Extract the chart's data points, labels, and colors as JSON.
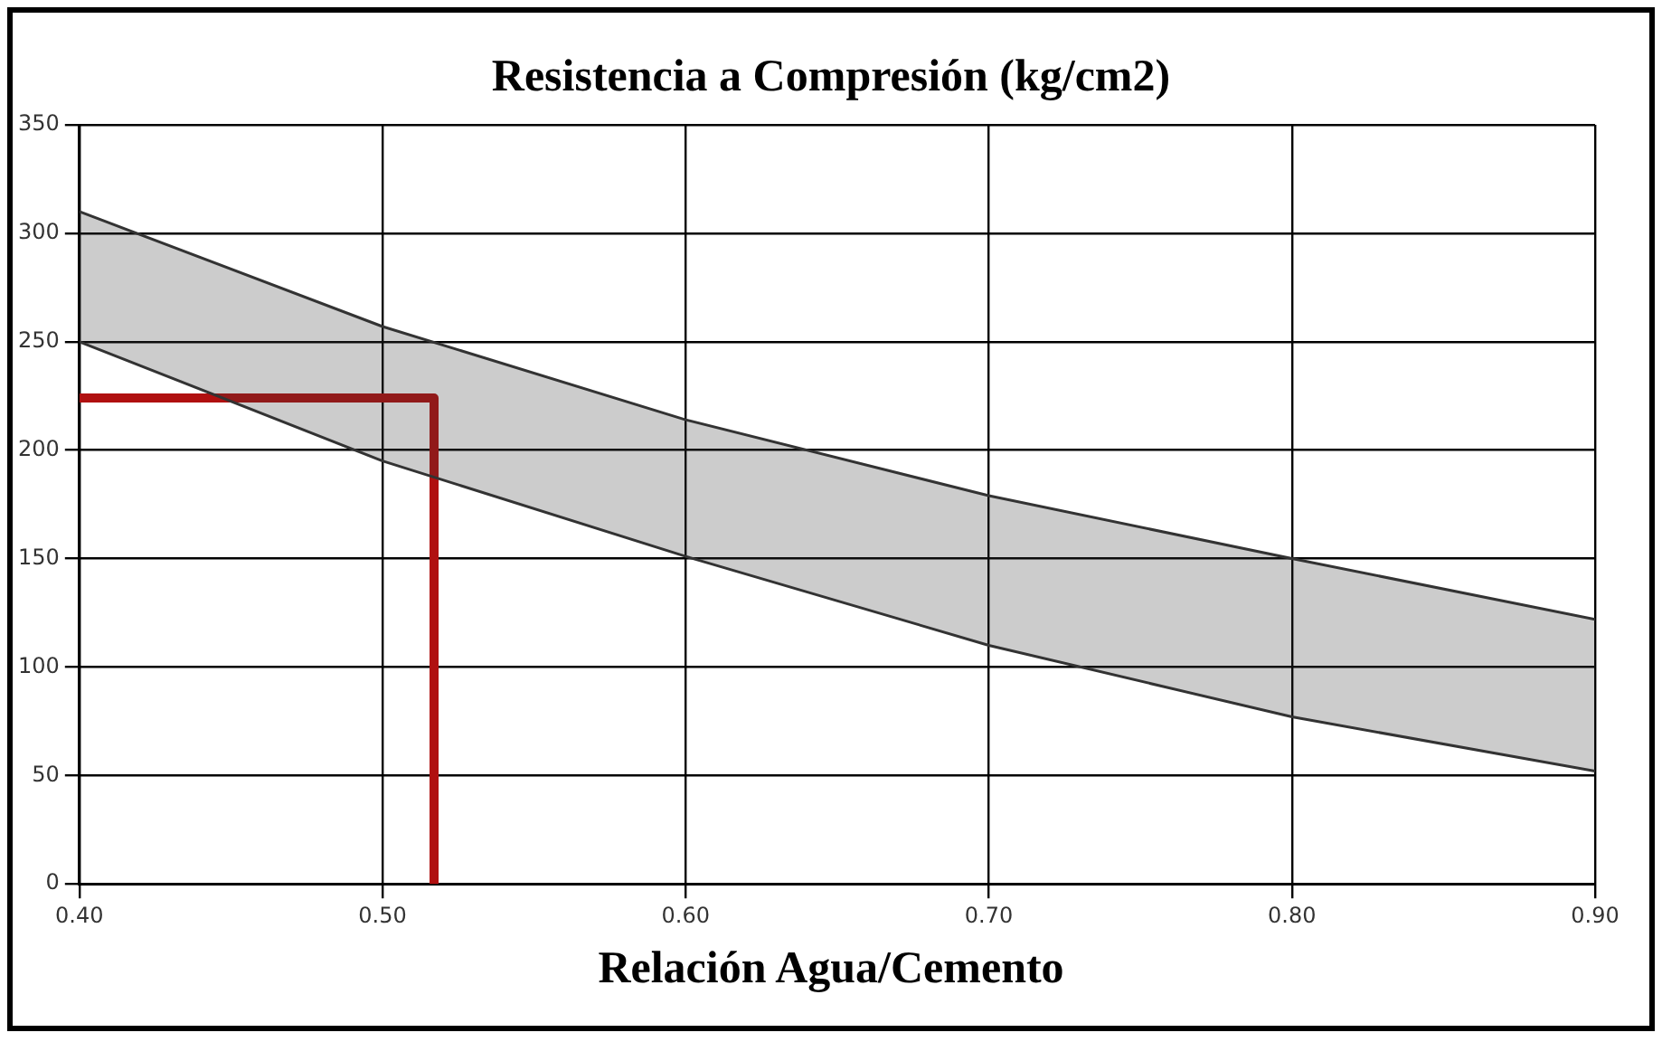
{
  "chart_data": {
    "type": "line",
    "title": "Resistencia a Compresión (kg/cm2)",
    "xlabel": "Relación Agua/Cemento",
    "series": [
      {
        "type": "area",
        "color": "#333333",
        "x": [
          0.4,
          0.5,
          0.6,
          0.7,
          0.8,
          0.9
        ],
        "values": [
          310,
          257,
          214,
          179,
          150,
          122
        ]
      },
      {
        "type": "line",
        "color": "#333333",
        "x": [
          0.4,
          0.5,
          0.6,
          0.7,
          0.8,
          0.9
        ],
        "values": [
          250,
          195,
          151,
          110,
          77,
          52
        ]
      },
      {
        "type": "line",
        "color": "#b01010",
        "x": [
          0.4,
          0.517,
          0.517
        ],
        "values": [
          224,
          224,
          0
        ]
      }
    ],
    "xlim": [
      0.4,
      0.9
    ],
    "xticks": [
      {
        "value": 0.4,
        "label": "0.40"
      },
      {
        "value": 0.5,
        "label": "0.50"
      },
      {
        "value": 0.6,
        "label": "0.60"
      },
      {
        "value": 0.7,
        "label": "0.70"
      },
      {
        "value": 0.8,
        "label": "0.80"
      },
      {
        "value": 0.9,
        "label": "0.90"
      }
    ],
    "ylim": [
      0,
      350
    ],
    "yticks": [
      0,
      50,
      100,
      150,
      200,
      250,
      300,
      350
    ],
    "grid": true,
    "legend": false,
    "marker": "none"
  }
}
